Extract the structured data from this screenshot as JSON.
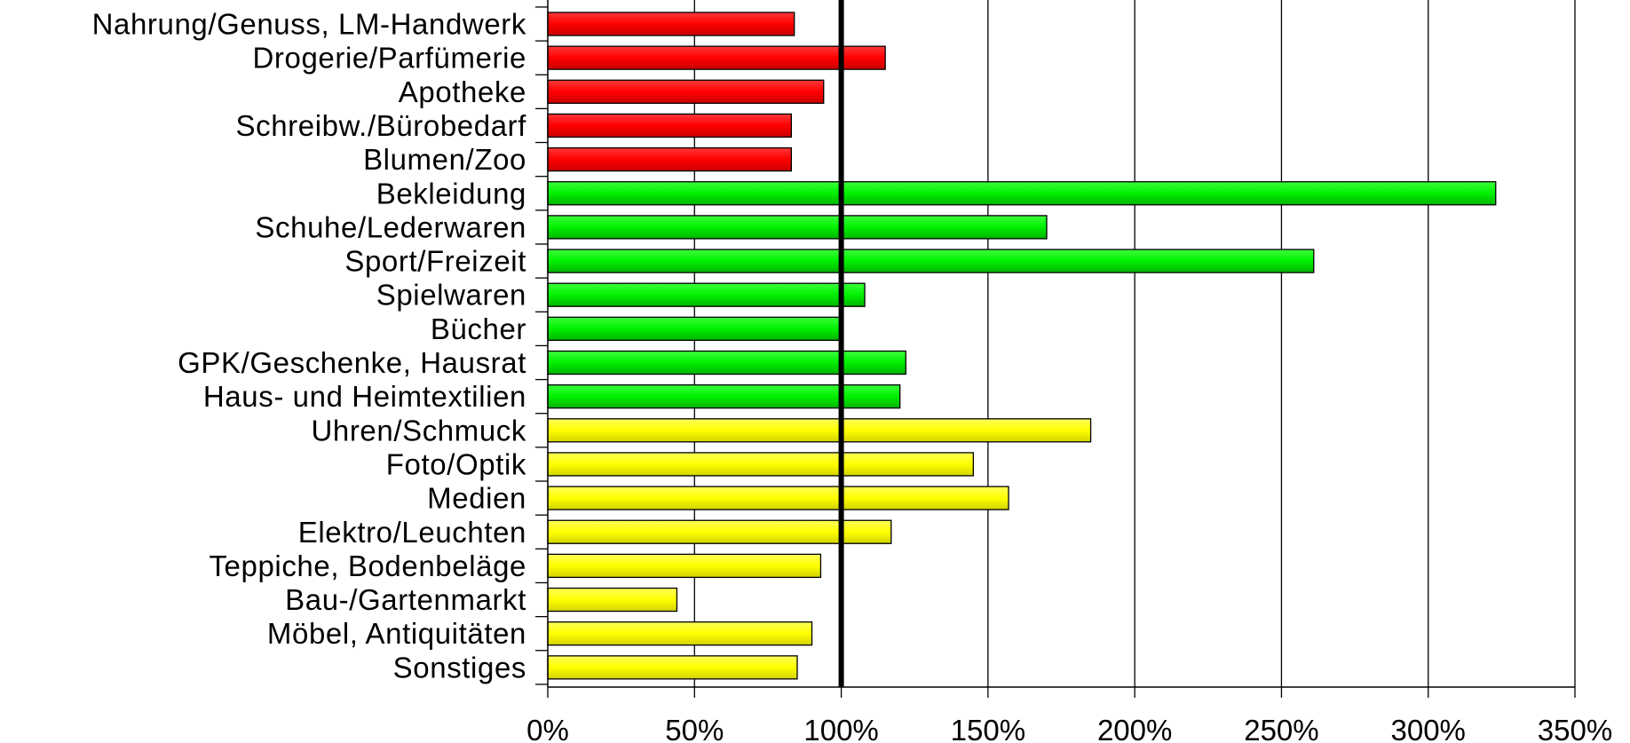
{
  "chart_data": {
    "type": "bar",
    "orientation": "horizontal",
    "categories": [
      "Nahrung/Genuss, LM-Handwerk",
      "Drogerie/Parfümerie",
      "Apotheke",
      "Schreibw./Bürobedarf",
      "Blumen/Zoo",
      "Bekleidung",
      "Schuhe/Lederwaren",
      "Sport/Freizeit",
      "Spielwaren",
      "Bücher",
      "GPK/Geschenke, Hausrat",
      "Haus- und Heimtextilien",
      "Uhren/Schmuck",
      "Foto/Optik",
      "Medien",
      "Elektro/Leuchten",
      "Teppiche, Bodenbeläge",
      "Bau-/Gartenmarkt",
      "Möbel, Antiquitäten",
      "Sonstiges"
    ],
    "values": [
      84,
      115,
      94,
      83,
      83,
      323,
      170,
      261,
      108,
      100,
      122,
      120,
      185,
      145,
      157,
      117,
      93,
      44,
      90,
      85
    ],
    "bar_colors": [
      "#ff0000",
      "#ff0000",
      "#ff0000",
      "#ff0000",
      "#ff0000",
      "#00ff00",
      "#00ff00",
      "#00ff00",
      "#00ff00",
      "#00ff00",
      "#00ff00",
      "#00ff00",
      "#ffff00",
      "#ffff00",
      "#ffff00",
      "#ffff00",
      "#ffff00",
      "#ffff00",
      "#ffff00",
      "#ffff00"
    ],
    "x_ticks": [
      "0%",
      "50%",
      "100%",
      "150%",
      "200%",
      "250%",
      "300%",
      "350%"
    ],
    "xlim": [
      0,
      350
    ],
    "reference_line": 100,
    "grid": true,
    "title": "",
    "xlabel": "",
    "ylabel": ""
  }
}
